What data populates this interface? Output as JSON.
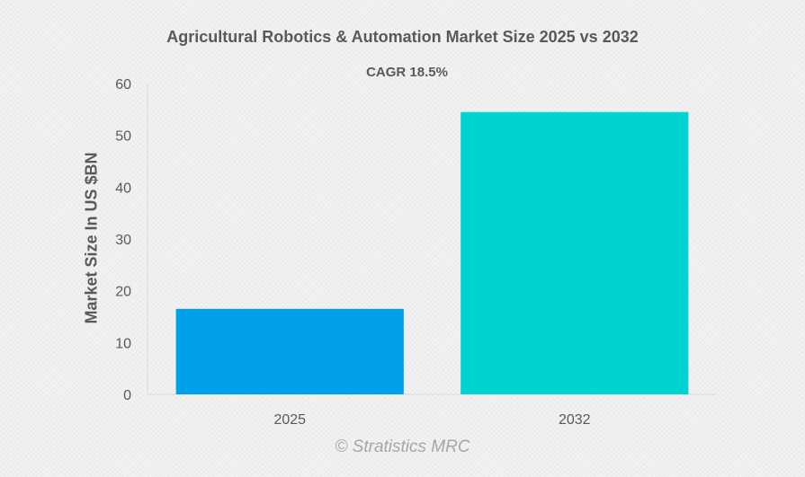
{
  "chart_data": {
    "type": "bar",
    "title": "Agricultural Robotics & Automation Market Size 2025 vs 2032",
    "subtitle": "CAGR 18.5%",
    "ylabel": "Market Size In US $BN",
    "xlabel": "",
    "categories": [
      "2025",
      "2032"
    ],
    "values": [
      16.5,
      54.5
    ],
    "ylim": [
      0,
      60
    ],
    "yticks": [
      "0",
      "10",
      "20",
      "30",
      "40",
      "50",
      "60"
    ],
    "grid": false,
    "legend": "none",
    "bar_colors": [
      "#00a0e9",
      "#00d4d0"
    ]
  },
  "watermark": "© Stratistics MRC"
}
